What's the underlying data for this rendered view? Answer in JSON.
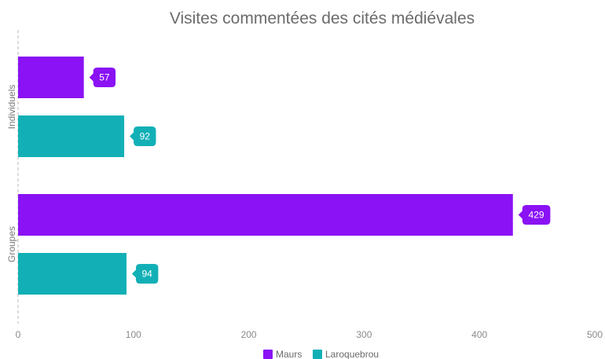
{
  "chart_data": {
    "type": "bar",
    "orientation": "horizontal",
    "title": "Visites commentées des cités médiévales",
    "categories": [
      "Individuels",
      "Groupes"
    ],
    "series": [
      {
        "name": "Maurs",
        "values": [
          57,
          429
        ],
        "color": "#8a12f4"
      },
      {
        "name": "Laroquebrou",
        "values": [
          92,
          94
        ],
        "color": "#12b0b6"
      }
    ],
    "xlim": [
      0,
      500
    ],
    "x_ticks": [
      "0",
      "100",
      "200",
      "300",
      "400",
      "500"
    ],
    "data_labels": [
      "57",
      "92",
      "429",
      "94"
    ],
    "grid": false,
    "legend_position": "bottom"
  }
}
